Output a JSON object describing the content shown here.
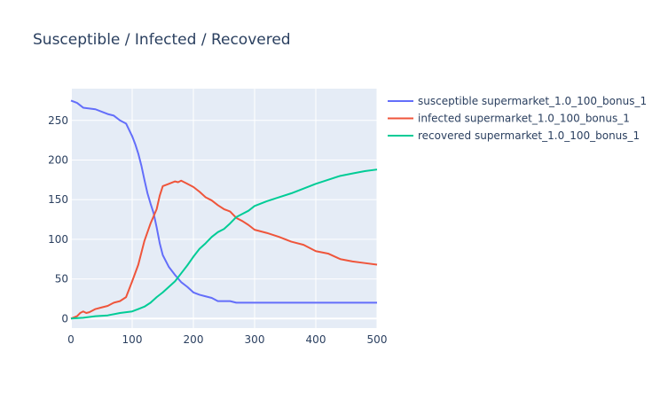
{
  "chart_data": {
    "type": "line",
    "title": "Susceptible / Infected / Recovered",
    "xlabel": "",
    "ylabel": "",
    "xlim": [
      0,
      500
    ],
    "ylim": [
      -12,
      290
    ],
    "xticks": [
      0,
      100,
      200,
      300,
      400,
      500
    ],
    "yticks": [
      0,
      50,
      100,
      150,
      200,
      250
    ],
    "grid": true,
    "legend_position": "top-right (outside plot)",
    "background_color": "#e5ecf6",
    "series": [
      {
        "name": "susceptible supermarket_1.0_100_bonus_1",
        "color": "#636efa",
        "x": [
          0,
          10,
          20,
          40,
          60,
          70,
          80,
          90,
          100,
          105,
          110,
          115,
          120,
          125,
          130,
          135,
          140,
          145,
          150,
          160,
          170,
          180,
          190,
          200,
          210,
          220,
          230,
          240,
          250,
          260,
          270,
          300,
          350,
          400,
          450,
          500
        ],
        "y": [
          275,
          272,
          266,
          264,
          258,
          256,
          250,
          246,
          230,
          220,
          208,
          193,
          175,
          158,
          145,
          133,
          115,
          95,
          80,
          65,
          55,
          46,
          40,
          33,
          30,
          28,
          26,
          22,
          22,
          22,
          20,
          20,
          20,
          20,
          20,
          20
        ]
      },
      {
        "name": "infected supermarket_1.0_100_bonus_1",
        "color": "#ef553b",
        "x": [
          0,
          10,
          15,
          20,
          25,
          30,
          40,
          50,
          60,
          70,
          80,
          90,
          100,
          110,
          120,
          130,
          140,
          145,
          150,
          160,
          170,
          175,
          180,
          190,
          200,
          210,
          220,
          230,
          240,
          250,
          260,
          270,
          280,
          290,
          300,
          320,
          340,
          360,
          380,
          400,
          420,
          440,
          460,
          480,
          500
        ],
        "y": [
          0,
          3,
          7,
          9,
          7,
          8,
          12,
          14,
          16,
          20,
          22,
          27,
          47,
          68,
          98,
          120,
          138,
          155,
          167,
          170,
          173,
          172,
          174,
          170,
          166,
          160,
          153,
          149,
          143,
          138,
          135,
          127,
          123,
          118,
          112,
          108,
          103,
          97,
          93,
          85,
          82,
          75,
          72,
          70,
          68
        ]
      },
      {
        "name": "recovered supermarket_1.0_100_bonus_1",
        "color": "#00cc96",
        "x": [
          0,
          20,
          40,
          60,
          80,
          100,
          110,
          120,
          130,
          140,
          150,
          160,
          170,
          180,
          190,
          200,
          210,
          220,
          230,
          240,
          250,
          260,
          270,
          280,
          290,
          300,
          320,
          340,
          360,
          380,
          400,
          420,
          440,
          460,
          480,
          500
        ],
        "y": [
          0,
          1,
          3,
          4,
          7,
          9,
          12,
          15,
          20,
          27,
          33,
          40,
          47,
          57,
          67,
          78,
          88,
          95,
          103,
          109,
          113,
          120,
          128,
          132,
          136,
          142,
          148,
          153,
          158,
          164,
          170,
          175,
          180,
          183,
          186,
          188
        ]
      }
    ]
  }
}
